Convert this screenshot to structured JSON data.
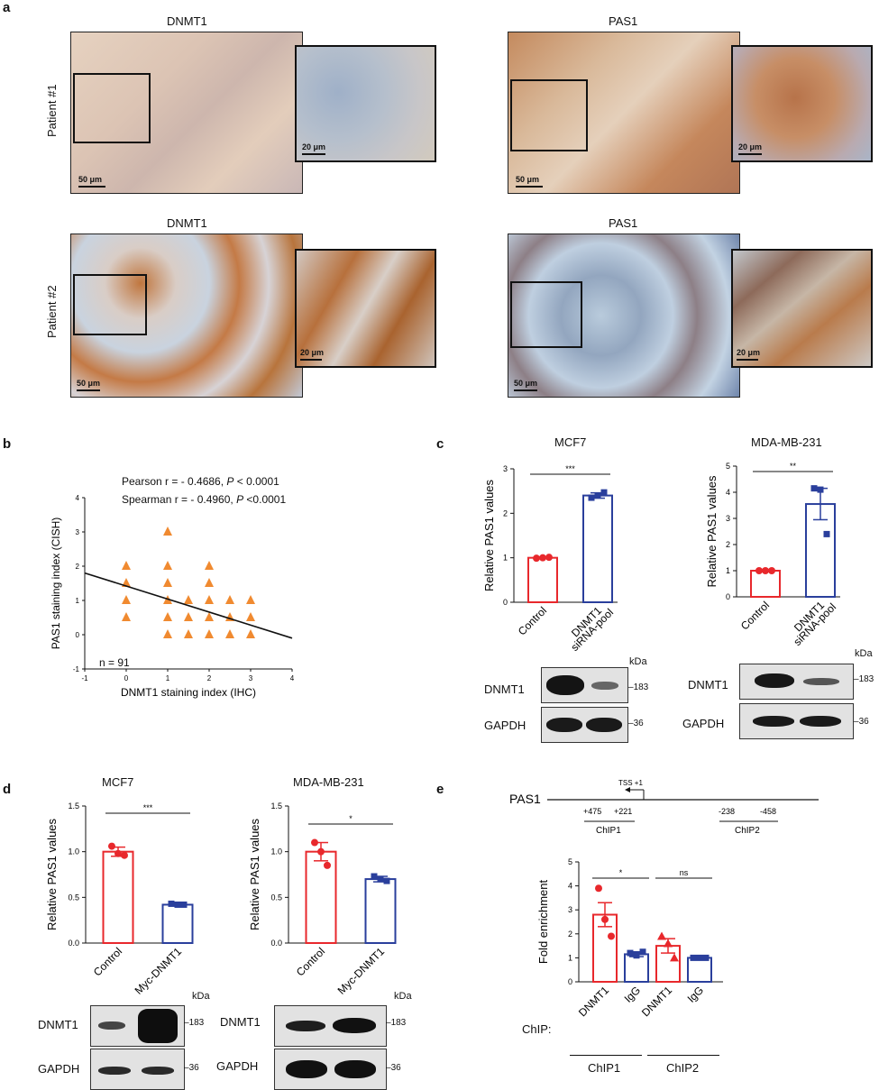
{
  "panel_a": {
    "letter": "a",
    "titles": {
      "dnmt1_p1": "DNMT1",
      "pas1_p1": "PAS1",
      "dnmt1_p2": "DNMT1",
      "pas1_p2": "PAS1"
    },
    "rows": {
      "patient1": "Patient #1",
      "patient2": "Patient #2"
    },
    "scale_large": "50 μm",
    "scale_small": "20 μm"
  },
  "panel_b": {
    "letter": "b",
    "pearson_prefix": "Pearson r = - 0.4686, ",
    "pearson_p": "P",
    "pearson_suffix": " < 0.0001",
    "spearman_prefix": "Spearman r = - 0.4960, ",
    "spearman_p": "P",
    "spearman_suffix": " <0.0001",
    "n_label": "n = 91"
  },
  "panel_c": {
    "letter": "c",
    "mcf7_title": "MCF7",
    "mda_title": "MDA-MB-231",
    "kda": "kDa",
    "blot_labels": {
      "dnmt1": "DNMT1",
      "gapdh": "GAPDH"
    },
    "mw": {
      "dnmt1": "183",
      "gapdh": "36"
    }
  },
  "panel_d": {
    "letter": "d",
    "mcf7_title": "MCF7",
    "mda_title": "MDA-MB-231",
    "kda": "kDa",
    "blot_labels": {
      "dnmt1": "DNMT1",
      "gapdh": "GAPDH"
    },
    "mw": {
      "dnmt1": "183",
      "gapdh": "36"
    }
  },
  "panel_e": {
    "letter": "e",
    "gene": "PAS1",
    "tss": "TSS +1",
    "pos": [
      "+475",
      "+221",
      "-238",
      "-458"
    ],
    "chip1": "ChIP1",
    "chip2": "ChIP2",
    "chip_label": "ChIP:"
  },
  "colors": {
    "control": "#e8282c",
    "treat": "#2a3f9c",
    "marker": "#f08a30",
    "line": "#111111"
  },
  "chart_data": [
    {
      "type": "scatter",
      "id": "b",
      "xlabel": "DNMT1 staining index (IHC)",
      "ylabel": "PAS1 staining index (CISH)",
      "xlim": [
        -1,
        4
      ],
      "ylim": [
        -1,
        4
      ],
      "xticks": [
        "-1",
        "0",
        "1",
        "2",
        "3",
        "4"
      ],
      "yticks": [
        "-1",
        "0",
        "1",
        "2",
        "3",
        "4"
      ],
      "points": [
        [
          0,
          2
        ],
        [
          0,
          1.5
        ],
        [
          0,
          1
        ],
        [
          0,
          0.5
        ],
        [
          1,
          3
        ],
        [
          1,
          2
        ],
        [
          1,
          1.5
        ],
        [
          1,
          1
        ],
        [
          1,
          0.5
        ],
        [
          1,
          0
        ],
        [
          1.5,
          1
        ],
        [
          1.5,
          0.5
        ],
        [
          1.5,
          0
        ],
        [
          2,
          2
        ],
        [
          2,
          1.5
        ],
        [
          2,
          1
        ],
        [
          2,
          0.5
        ],
        [
          2,
          0
        ],
        [
          2.5,
          1
        ],
        [
          2.5,
          0.5
        ],
        [
          2.5,
          0
        ],
        [
          3,
          1
        ],
        [
          3,
          0.5
        ],
        [
          3,
          0
        ]
      ],
      "fit": [
        [
          -1,
          1.8
        ],
        [
          4,
          -0.1
        ]
      ]
    },
    {
      "type": "bar",
      "id": "c_mcf7",
      "ylabel": "Relative PAS1 values",
      "categories": [
        "Control",
        "DNMT1\nsiRNA-pool"
      ],
      "values": [
        1.0,
        2.4
      ],
      "sem": [
        0.02,
        0.06
      ],
      "points": [
        [
          0.99,
          1.0,
          1.01
        ],
        [
          2.35,
          2.4,
          2.47
        ]
      ],
      "ylim": [
        0,
        3
      ],
      "yticks": [
        "0",
        "1",
        "2",
        "3"
      ],
      "sig": "***"
    },
    {
      "type": "bar",
      "id": "c_mda",
      "ylabel": "Relative PAS1 values",
      "categories": [
        "Control",
        "DNMT1\nsiRNA-pool"
      ],
      "values": [
        1.0,
        3.55
      ],
      "sem": [
        0.01,
        0.6
      ],
      "points": [
        [
          1.0,
          1.0,
          1.0
        ],
        [
          4.15,
          4.1,
          2.4
        ]
      ],
      "ylim": [
        0,
        5
      ],
      "yticks": [
        "0",
        "1",
        "2",
        "3",
        "4",
        "5"
      ],
      "sig": "**"
    },
    {
      "type": "bar",
      "id": "d_mcf7",
      "ylabel": "Relative PAS1 values",
      "categories": [
        "Control",
        "Myc-DNMT1"
      ],
      "values": [
        1.0,
        0.42
      ],
      "sem": [
        0.05,
        0.01
      ],
      "points": [
        [
          1.06,
          0.98,
          0.96
        ],
        [
          0.43,
          0.42,
          0.42
        ]
      ],
      "ylim": [
        0,
        1.5
      ],
      "yticks": [
        "0.0",
        "0.5",
        "1.0",
        "1.5"
      ],
      "sig": "***"
    },
    {
      "type": "bar",
      "id": "d_mda",
      "ylabel": "Relative PAS1 values",
      "categories": [
        "Control",
        "Myc-DNMT1"
      ],
      "values": [
        1.0,
        0.7
      ],
      "sem": [
        0.1,
        0.03
      ],
      "points": [
        [
          1.1,
          1.0,
          0.85
        ],
        [
          0.73,
          0.7,
          0.68
        ]
      ],
      "ylim": [
        0,
        1.5
      ],
      "yticks": [
        "0.0",
        "0.5",
        "1.0",
        "1.5"
      ],
      "sig": "*"
    },
    {
      "type": "bar",
      "id": "e",
      "ylabel": "Fold enrichment",
      "categories": [
        "DNMT1",
        "IgG",
        "DNMT1",
        "IgG"
      ],
      "values": [
        2.8,
        1.15,
        1.5,
        1.0
      ],
      "sem": [
        0.5,
        0.1,
        0.3,
        0.03
      ],
      "points": [
        [
          3.9,
          2.6,
          1.9
        ],
        [
          1.2,
          1.1,
          1.25
        ],
        [
          1.9,
          1.6,
          1.0
        ],
        [
          1.0,
          1.0,
          1.0
        ]
      ],
      "ylim": [
        0,
        5
      ],
      "yticks": [
        "0",
        "1",
        "2",
        "3",
        "4",
        "5"
      ],
      "sig": [
        {
          "from": 0,
          "to": 1,
          "text": "*"
        },
        {
          "from": 2,
          "to": 3,
          "text": "ns"
        }
      ]
    }
  ]
}
